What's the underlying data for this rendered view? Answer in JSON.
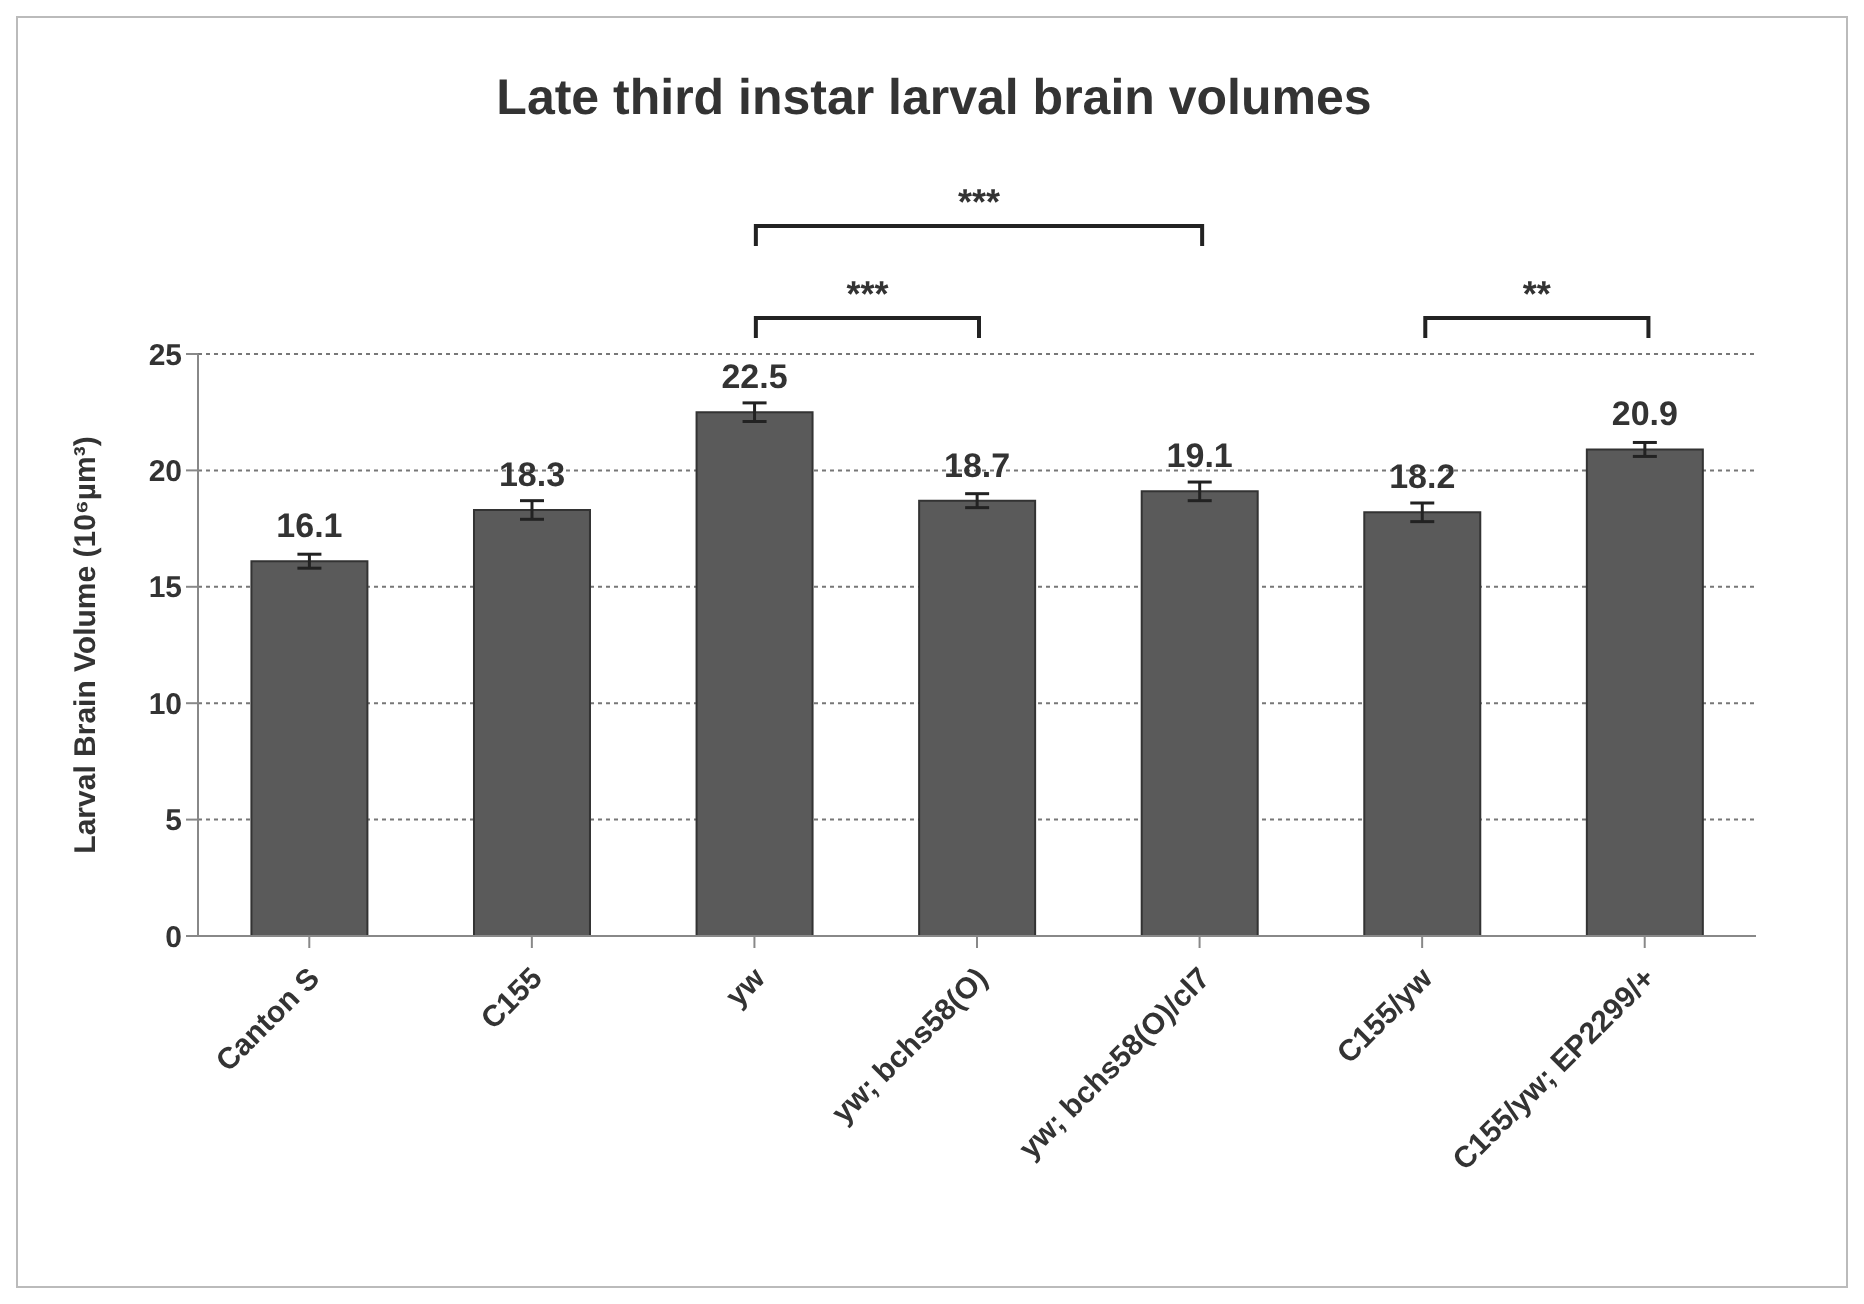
{
  "chart_data": {
    "type": "bar",
    "title": "Late third instar larval brain volumes",
    "ylabel": "Larval Brain Volume (10⁶µm³)",
    "categories": [
      "Canton S",
      "C155",
      "yw",
      "yw; bchs58(O)",
      "yw; bchs58(O)/cl7",
      "C155/yw",
      "C155/yw; EP2299/+"
    ],
    "values": [
      16.1,
      18.3,
      22.5,
      18.7,
      19.1,
      18.2,
      20.9
    ],
    "errors": [
      0.3,
      0.4,
      0.4,
      0.3,
      0.4,
      0.4,
      0.3
    ],
    "color": "#5a5a5a",
    "ylim": [
      0,
      25
    ],
    "yticks": [
      0,
      5,
      10,
      15,
      20,
      25
    ],
    "grid": "y",
    "data_labels": true,
    "annotations": [
      "***",
      "***",
      "**"
    ]
  }
}
